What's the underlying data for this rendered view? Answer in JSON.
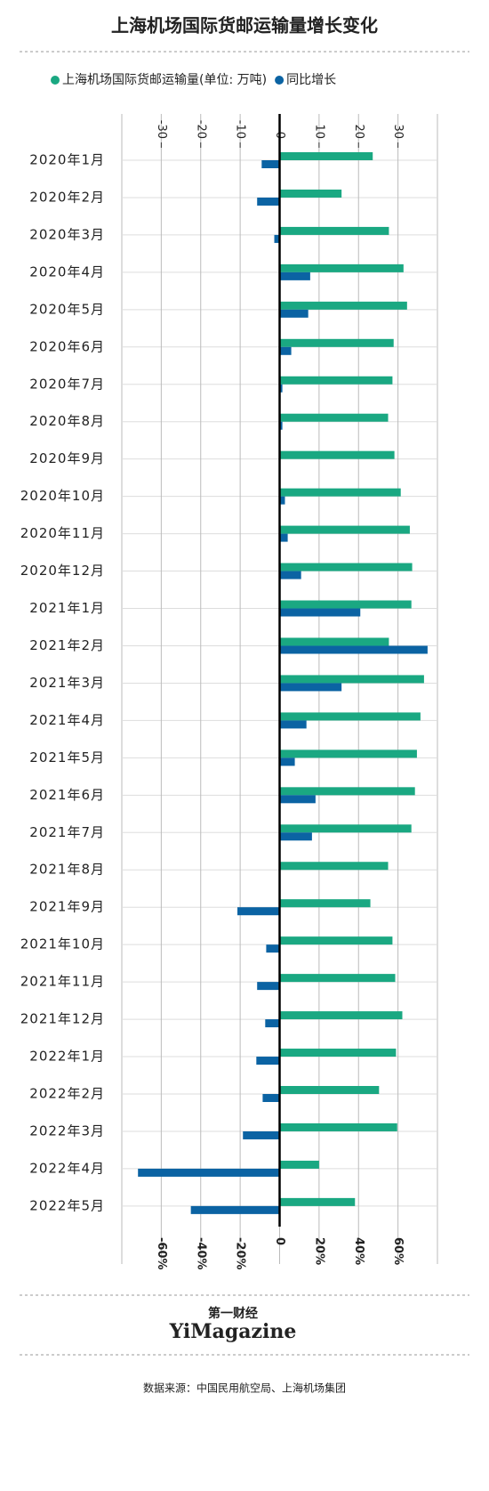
{
  "chart_data": {
    "type": "hbar",
    "title": "上海机场国际货邮运输量增长变化",
    "categories": [
      "2020年1月",
      "2020年2月",
      "2020年3月",
      "2020年4月",
      "2020年5月",
      "2020年6月",
      "2020年7月",
      "2020年8月",
      "2020年9月",
      "2020年10月",
      "2020年11月",
      "2020年12月",
      "2021年1月",
      "2021年2月",
      "2021年3月",
      "2021年4月",
      "2021年5月",
      "2021年6月",
      "2021年7月",
      "2021年8月",
      "2021年9月",
      "2021年10月",
      "2021年11月",
      "2021年12月",
      "2022年1月",
      "2022年2月",
      "2022年3月",
      "2022年4月",
      "2022年5月"
    ],
    "series": [
      {
        "name": "上海机场国际货邮运输量(单位: 万吨)",
        "color": "#1aa882",
        "axis": "x",
        "values": [
          23.6,
          15.7,
          27.7,
          31.4,
          32.3,
          28.9,
          28.6,
          27.5,
          29.1,
          30.7,
          33.0,
          33.6,
          33.4,
          27.7,
          36.6,
          35.7,
          34.8,
          34.3,
          33.4,
          27.5,
          23.0,
          28.6,
          29.3,
          31.1,
          29.5,
          25.2,
          29.8,
          10.0,
          19.1
        ]
      },
      {
        "name": "同比增长",
        "color": "#0b63a3",
        "axis": "x2",
        "values": [
          -9.1,
          -11.4,
          -2.7,
          15.5,
          14.5,
          5.9,
          1.4,
          1.4,
          0.2,
          2.7,
          4.1,
          10.9,
          40.9,
          75,
          31.4,
          13.6,
          7.7,
          18.2,
          16.4,
          0.1,
          -21.4,
          -6.8,
          -11.4,
          -7.3,
          -11.8,
          -8.6,
          -18.6,
          -71.8,
          -45
        ]
      }
    ],
    "xlim": [
      -40,
      40
    ],
    "xticks": [
      -30,
      -20,
      -10,
      0,
      10,
      20,
      30
    ],
    "x2lim": [
      -80,
      80
    ],
    "x2ticks": [
      {
        "value": -60,
        "label": "-60%"
      },
      {
        "value": -40,
        "label": "-40%"
      },
      {
        "value": -20,
        "label": "-20%"
      },
      0,
      {
        "value": 20,
        "label": "20%"
      },
      {
        "value": 40,
        "label": "40%"
      },
      {
        "value": 60,
        "label": "60%"
      }
    ],
    "grid": true,
    "brand_cn": "第一财经",
    "brand_en": "YiMagazine",
    "source": "数据来源：中国民用航空局、上海机场集团"
  }
}
